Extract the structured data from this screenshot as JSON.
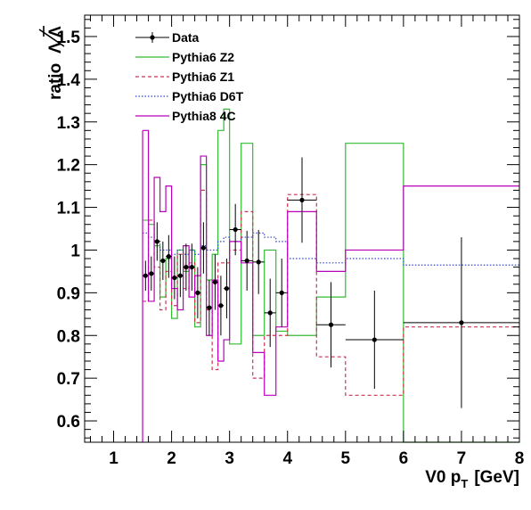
{
  "chart_data": {
    "type": "line",
    "title": "",
    "xlabel": "V0 p_T [GeV]",
    "xlabel_main": "V0 p",
    "xlabel_sub": "T",
    "xlabel_unit": "[GeV]",
    "ylabel": "ratio Λ/Λ̄",
    "ylabel_text": "ratio",
    "ylabel_num": "Λ",
    "ylabel_den": "Λ",
    "xlim": [
      0.5,
      8.0
    ],
    "ylim": [
      0.55,
      1.55
    ],
    "xticks": [
      1,
      2,
      3,
      4,
      5,
      6,
      7,
      8
    ],
    "xtick_labels": [
      "1",
      "2",
      "3",
      "4",
      "5",
      "6",
      "7",
      "8"
    ],
    "yticks": [
      0.6,
      0.7,
      0.8,
      0.9,
      1.0,
      1.1,
      1.2,
      1.3,
      1.4,
      1.5
    ],
    "ytick_labels": [
      "0.6",
      "0.7",
      "0.8",
      "0.9",
      "1",
      "1.1",
      "1.2",
      "1.3",
      "1.4",
      "1.5"
    ],
    "grid": false,
    "legend_position": "top-left",
    "colors": {
      "data": "#000000",
      "pythia6_z2": "#33bb33",
      "pythia6_z1": "#cc3355",
      "pythia6_d6t": "#3344cc",
      "pythia8_4c": "#bb00bb"
    },
    "bin_edges": [
      1.5,
      1.6,
      1.7,
      1.8,
      1.9,
      2.0,
      2.1,
      2.2,
      2.3,
      2.4,
      2.5,
      2.6,
      2.7,
      2.8,
      2.9,
      3.0,
      3.2,
      3.4,
      3.6,
      3.8,
      4.0,
      4.5,
      5.0,
      6.0,
      8.0
    ],
    "data": {
      "name": "Data",
      "x": [
        1.55,
        1.65,
        1.75,
        1.85,
        1.95,
        2.05,
        2.15,
        2.25,
        2.35,
        2.45,
        2.55,
        2.65,
        2.75,
        2.85,
        2.95,
        3.1,
        3.3,
        3.5,
        3.7,
        3.9,
        4.25,
        4.75,
        5.5,
        7.0
      ],
      "y": [
        0.94,
        0.945,
        1.02,
        0.975,
        0.985,
        0.935,
        0.94,
        0.96,
        0.96,
        0.9,
        1.005,
        0.865,
        0.925,
        0.87,
        0.91,
        1.048,
        0.975,
        0.972,
        0.853,
        0.9,
        1.117,
        0.825,
        0.79,
        0.83
      ],
      "yerr": [
        0.035,
        0.04,
        0.045,
        0.045,
        0.05,
        0.05,
        0.05,
        0.055,
        0.055,
        0.06,
        0.06,
        0.065,
        0.065,
        0.07,
        0.07,
        0.06,
        0.07,
        0.075,
        0.08,
        0.08,
        0.1,
        0.1,
        0.115,
        0.2
      ]
    },
    "series": [
      {
        "name": "Pythia6 Z2",
        "style": "solid",
        "values": [
          1.07,
          1.06,
          1.01,
          0.89,
          0.98,
          0.84,
          1.0,
          0.95,
          1.0,
          0.82,
          1.2,
          0.93,
          0.99,
          1.28,
          1.33,
          0.78,
          1.25,
          0.8,
          1.0,
          0.81,
          0.8,
          0.89,
          1.25,
          0.55
        ]
      },
      {
        "name": "Pythia6 Z1",
        "style": "dashed",
        "values": [
          0.88,
          1.07,
          0.96,
          0.86,
          0.95,
          0.87,
          0.99,
          0.91,
          0.97,
          0.83,
          1.14,
          0.86,
          0.72,
          0.97,
          0.97,
          1.0,
          1.09,
          0.7,
          0.8,
          0.8,
          1.13,
          0.75,
          0.66,
          0.82
        ]
      },
      {
        "name": "Pythia6 D6T",
        "style": "dotted",
        "values": [
          1.04,
          1.03,
          1.02,
          1.0,
          1.0,
          0.99,
          1.0,
          0.99,
          1.0,
          0.99,
          1.01,
          1.0,
          1.0,
          1.02,
          1.03,
          1.02,
          1.03,
          1.04,
          1.03,
          1.02,
          0.98,
          0.97,
          0.98,
          0.965
        ]
      },
      {
        "name": "Pythia8 4C",
        "style": "solid",
        "values": [
          1.28,
          0.88,
          1.17,
          1.09,
          1.15,
          0.91,
          0.86,
          1.01,
          0.89,
          0.94,
          1.22,
          0.8,
          0.93,
          0.74,
          0.79,
          1.02,
          0.97,
          0.76,
          0.66,
          0.82,
          1.09,
          0.95,
          1.0,
          1.15
        ]
      }
    ],
    "legend": {
      "entries": [
        "Data",
        "Pythia6 Z2",
        "Pythia6 Z1",
        "Pythia6 D6T",
        "Pythia8 4C"
      ]
    }
  }
}
